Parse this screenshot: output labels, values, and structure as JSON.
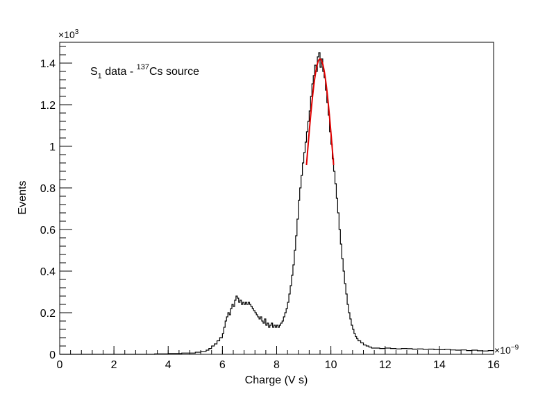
{
  "chart_data": {
    "type": "histogram",
    "xlabel": "Charge (V s)",
    "ylabel": "Events",
    "annotation": {
      "text_main": "S",
      "text_sub": "1",
      "text_mid": " data - ",
      "text_sup": "137",
      "text_end": "Cs source"
    },
    "x_multiplier": {
      "base": "×10",
      "exp": "−9"
    },
    "y_multiplier": {
      "base": "×10",
      "exp": "3"
    },
    "xlim": [
      0,
      16
    ],
    "ylim": [
      0,
      1.5
    ],
    "x_ticks": [
      0,
      2,
      4,
      6,
      8,
      10,
      12,
      14,
      16
    ],
    "x_tick_labels": [
      "0",
      "2",
      "4",
      "6",
      "8",
      "10",
      "12",
      "14",
      "16"
    ],
    "y_ticks": [
      0,
      0.2,
      0.4,
      0.6,
      0.8,
      1.0,
      1.2,
      1.4
    ],
    "y_tick_labels": [
      "0",
      "0.2",
      "0.4",
      "0.6",
      "0.8",
      "1",
      "1.2",
      "1.4"
    ],
    "grid": false,
    "histogram_points": [
      [
        0.0,
        0.0
      ],
      [
        3.5,
        0.002
      ],
      [
        4.0,
        0.004
      ],
      [
        4.5,
        0.006
      ],
      [
        5.0,
        0.01
      ],
      [
        5.2,
        0.014
      ],
      [
        5.4,
        0.02
      ],
      [
        5.5,
        0.028
      ],
      [
        5.6,
        0.04
      ],
      [
        5.7,
        0.05
      ],
      [
        5.8,
        0.065
      ],
      [
        5.9,
        0.08
      ],
      [
        6.0,
        0.1
      ],
      [
        6.05,
        0.13
      ],
      [
        6.1,
        0.16
      ],
      [
        6.15,
        0.18
      ],
      [
        6.2,
        0.2
      ],
      [
        6.25,
        0.19
      ],
      [
        6.3,
        0.22
      ],
      [
        6.35,
        0.24
      ],
      [
        6.4,
        0.23
      ],
      [
        6.45,
        0.26
      ],
      [
        6.5,
        0.28
      ],
      [
        6.55,
        0.27
      ],
      [
        6.6,
        0.25
      ],
      [
        6.65,
        0.26
      ],
      [
        6.7,
        0.24
      ],
      [
        6.75,
        0.25
      ],
      [
        6.8,
        0.24
      ],
      [
        6.85,
        0.25
      ],
      [
        6.9,
        0.24
      ],
      [
        6.95,
        0.25
      ],
      [
        7.0,
        0.24
      ],
      [
        7.05,
        0.23
      ],
      [
        7.1,
        0.22
      ],
      [
        7.15,
        0.21
      ],
      [
        7.2,
        0.2
      ],
      [
        7.25,
        0.19
      ],
      [
        7.3,
        0.18
      ],
      [
        7.35,
        0.17
      ],
      [
        7.4,
        0.18
      ],
      [
        7.45,
        0.16
      ],
      [
        7.5,
        0.15
      ],
      [
        7.55,
        0.17
      ],
      [
        7.6,
        0.14
      ],
      [
        7.65,
        0.15
      ],
      [
        7.7,
        0.13
      ],
      [
        7.75,
        0.14
      ],
      [
        7.8,
        0.15
      ],
      [
        7.85,
        0.13
      ],
      [
        7.9,
        0.14
      ],
      [
        7.95,
        0.13
      ],
      [
        8.0,
        0.14
      ],
      [
        8.05,
        0.13
      ],
      [
        8.1,
        0.14
      ],
      [
        8.15,
        0.15
      ],
      [
        8.2,
        0.16
      ],
      [
        8.25,
        0.18
      ],
      [
        8.3,
        0.2
      ],
      [
        8.35,
        0.22
      ],
      [
        8.4,
        0.25
      ],
      [
        8.45,
        0.29
      ],
      [
        8.5,
        0.33
      ],
      [
        8.55,
        0.38
      ],
      [
        8.6,
        0.43
      ],
      [
        8.65,
        0.5
      ],
      [
        8.7,
        0.57
      ],
      [
        8.75,
        0.65
      ],
      [
        8.8,
        0.74
      ],
      [
        8.85,
        0.8
      ],
      [
        8.9,
        0.86
      ],
      [
        8.95,
        0.92
      ],
      [
        9.0,
        0.97
      ],
      [
        9.05,
        1.02
      ],
      [
        9.1,
        1.07
      ],
      [
        9.15,
        1.12
      ],
      [
        9.2,
        1.17
      ],
      [
        9.25,
        1.24
      ],
      [
        9.3,
        1.3
      ],
      [
        9.35,
        1.34
      ],
      [
        9.4,
        1.39
      ],
      [
        9.45,
        1.36
      ],
      [
        9.5,
        1.43
      ],
      [
        9.55,
        1.45
      ],
      [
        9.6,
        1.38
      ],
      [
        9.65,
        1.42
      ],
      [
        9.7,
        1.36
      ],
      [
        9.75,
        1.33
      ],
      [
        9.8,
        1.27
      ],
      [
        9.85,
        1.21
      ],
      [
        9.9,
        1.15
      ],
      [
        9.95,
        1.07
      ],
      [
        10.0,
        1.01
      ],
      [
        10.05,
        0.94
      ],
      [
        10.1,
        0.88
      ],
      [
        10.15,
        0.82
      ],
      [
        10.2,
        0.75
      ],
      [
        10.25,
        0.68
      ],
      [
        10.3,
        0.6
      ],
      [
        10.35,
        0.53
      ],
      [
        10.4,
        0.46
      ],
      [
        10.45,
        0.4
      ],
      [
        10.5,
        0.34
      ],
      [
        10.55,
        0.29
      ],
      [
        10.6,
        0.24
      ],
      [
        10.65,
        0.2
      ],
      [
        10.7,
        0.17
      ],
      [
        10.75,
        0.14
      ],
      [
        10.8,
        0.12
      ],
      [
        10.85,
        0.1
      ],
      [
        10.9,
        0.085
      ],
      [
        10.95,
        0.075
      ],
      [
        11.0,
        0.065
      ],
      [
        11.1,
        0.055
      ],
      [
        11.2,
        0.045
      ],
      [
        11.3,
        0.04
      ],
      [
        11.4,
        0.035
      ],
      [
        11.5,
        0.03
      ],
      [
        11.6,
        0.03
      ],
      [
        11.8,
        0.028
      ],
      [
        12.0,
        0.03
      ],
      [
        12.2,
        0.028
      ],
      [
        12.4,
        0.026
      ],
      [
        12.6,
        0.028
      ],
      [
        12.8,
        0.027
      ],
      [
        13.0,
        0.025
      ],
      [
        13.2,
        0.026
      ],
      [
        13.4,
        0.024
      ],
      [
        13.6,
        0.025
      ],
      [
        13.8,
        0.023
      ],
      [
        14.0,
        0.022
      ],
      [
        14.2,
        0.024
      ],
      [
        14.4,
        0.021
      ],
      [
        14.6,
        0.02
      ],
      [
        14.8,
        0.021
      ],
      [
        15.0,
        0.018
      ],
      [
        15.2,
        0.02
      ],
      [
        15.4,
        0.017
      ],
      [
        15.6,
        0.016
      ],
      [
        15.8,
        0.018
      ],
      [
        16.0,
        0.015
      ]
    ],
    "fit": {
      "name": "Gaussian fit",
      "color": "#e00000",
      "x_range": [
        9.1,
        10.1
      ],
      "amplitude": 1.42,
      "mean": 9.6,
      "sigma": 0.53
    },
    "colors": {
      "histogram": "#000000",
      "fit": "#e00000",
      "frame": "#000000",
      "background": "#ffffff"
    }
  }
}
